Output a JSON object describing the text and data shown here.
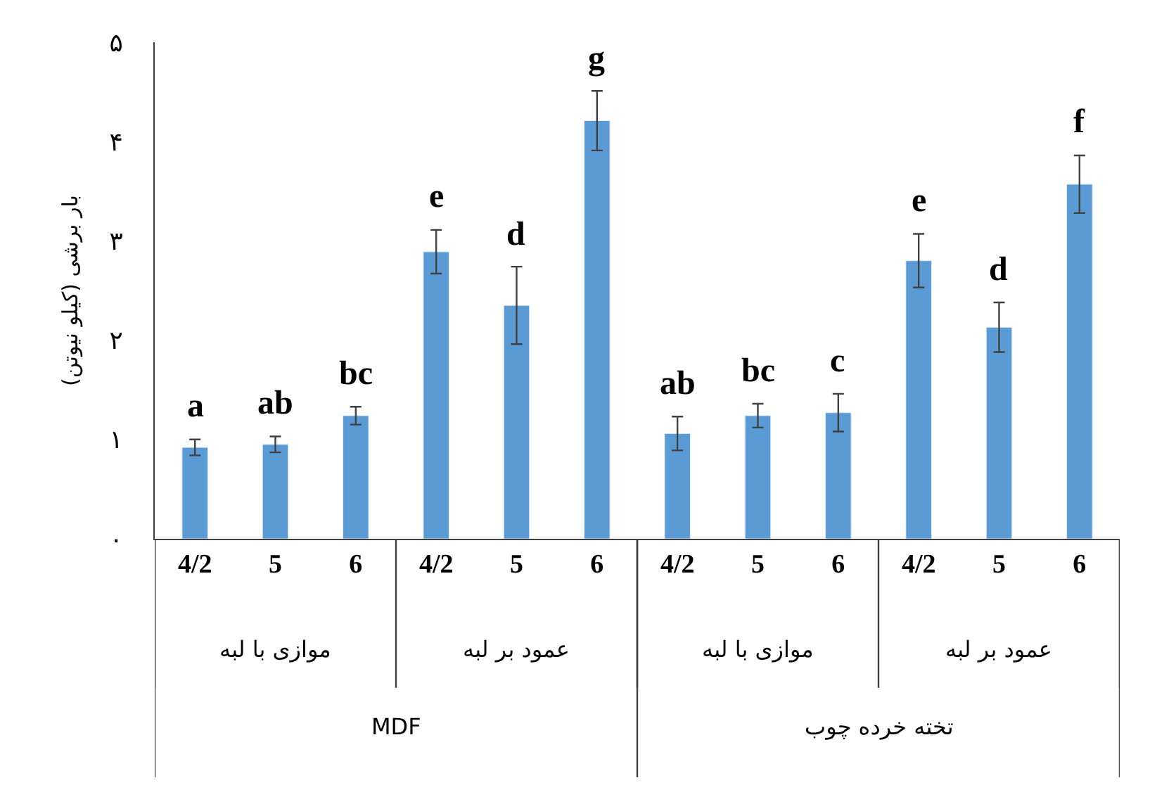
{
  "chart_data": {
    "type": "bar",
    "ylabel": "بار برشی (کیلو نیوتن)",
    "categories": [
      "4/2",
      "5",
      "6",
      "4/2",
      "5",
      "6",
      "4/2",
      "5",
      "6",
      "4/2",
      "5",
      "6"
    ],
    "values": [
      0.92,
      0.95,
      1.24,
      2.89,
      2.35,
      4.21,
      1.06,
      1.24,
      1.27,
      2.8,
      2.13,
      3.57
    ],
    "errors": [
      0.08,
      0.08,
      0.09,
      0.22,
      0.39,
      0.3,
      0.17,
      0.12,
      0.19,
      0.27,
      0.25,
      0.29
    ],
    "value_labels": [
      "a",
      "ab",
      "bc",
      "e",
      "d",
      "g",
      "ab",
      "bc",
      "c",
      "e",
      "d",
      "f"
    ],
    "color": "#5b9bd5",
    "ylim": [
      0,
      5
    ],
    "yticks": [
      {
        "value": 0,
        "label": "۰"
      },
      {
        "value": 1,
        "label": "۱"
      },
      {
        "value": 2,
        "label": "۲"
      },
      {
        "value": 3,
        "label": "۳"
      },
      {
        "value": 4,
        "label": "۴"
      },
      {
        "value": 5,
        "label": "۵"
      }
    ],
    "annotations": [
      "موازی با لبه",
      "عمود بر لبه",
      "موازی با لبه",
      "عمود بر لبه",
      "MDF",
      "تخته خرده چوب"
    ],
    "legend": false
  }
}
